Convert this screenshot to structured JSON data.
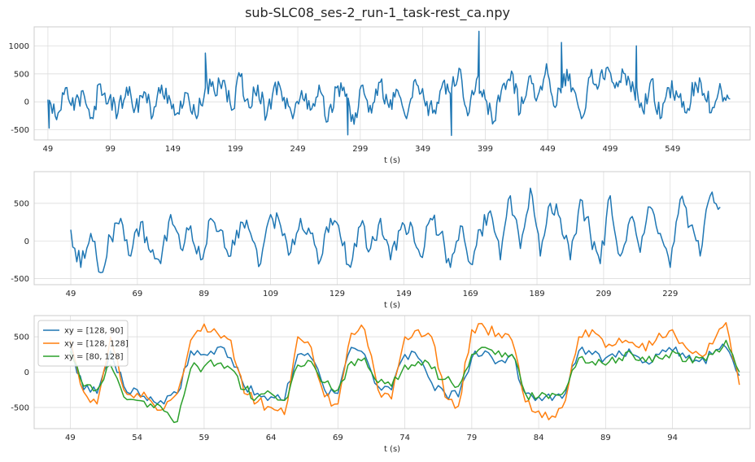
{
  "figure": {
    "title": "sub-SLC08_ses-2_run-1_task-rest_ca.npy",
    "background": "#ffffff",
    "axes_face": "#ffffff",
    "grid_color": "#dddddd",
    "spine_color": "#cccccc"
  },
  "chart_data": [
    {
      "type": "line",
      "xlabel": "t (s)",
      "ylabel": "",
      "xlim": [
        38,
        611
      ],
      "ylim": [
        -680,
        1340
      ],
      "xticks": [
        49,
        99,
        149,
        199,
        249,
        299,
        349,
        399,
        449,
        499,
        549
      ],
      "yticks": [
        -500,
        0,
        500,
        1000
      ],
      "grid": true,
      "series": [
        {
          "color": "#1f77b4",
          "x": [
            49,
            56,
            63,
            70,
            77,
            84,
            91,
            98,
            105,
            112,
            119,
            126,
            133,
            140,
            147,
            154,
            161,
            168,
            175,
            182,
            189,
            196,
            203,
            210,
            217,
            224,
            231,
            238,
            245,
            252,
            259,
            266,
            273,
            280,
            287,
            294,
            301,
            308,
            315,
            322,
            329,
            336,
            343,
            350,
            357,
            364,
            371,
            378,
            385,
            392,
            399,
            406,
            413,
            420,
            427,
            434,
            441,
            448,
            455,
            462,
            469,
            476,
            483,
            490,
            497,
            504,
            511,
            518,
            525,
            532,
            539,
            546,
            553,
            560,
            567,
            574,
            581,
            588,
            595
          ],
          "values": [
            40,
            -320,
            250,
            -150,
            200,
            -280,
            320,
            50,
            -200,
            260,
            -100,
            180,
            -250,
            300,
            20,
            -220,
            150,
            -300,
            250,
            200,
            380,
            -150,
            450,
            -100,
            300,
            -250,
            350,
            80,
            -300,
            200,
            -150,
            300,
            -350,
            250,
            100,
            -400,
            300,
            -200,
            350,
            -100,
            200,
            -300,
            400,
            50,
            -200,
            250,
            150,
            600,
            -250,
            400,
            50,
            -350,
            300,
            550,
            -200,
            450,
            100,
            680,
            -100,
            500,
            250,
            -300,
            450,
            300,
            620,
            350,
            500,
            200,
            -150,
            400,
            -300,
            250,
            100,
            -200,
            350,
            150,
            -100,
            200,
            50
          ],
          "peaks": [
            {
              "x": 175,
              "y": 870
            },
            {
              "x": 394,
              "y": 1260
            },
            {
              "x": 460,
              "y": 1060
            },
            {
              "x": 520,
              "y": 1000
            },
            {
              "x": 289,
              "y": -590
            },
            {
              "x": 372,
              "y": -600
            },
            {
              "x": 50,
              "y": -470
            }
          ]
        }
      ]
    },
    {
      "type": "line",
      "xlabel": "t (s)",
      "ylabel": "",
      "xlim": [
        38,
        253
      ],
      "ylim": [
        -580,
        920
      ],
      "xticks": [
        49,
        69,
        89,
        109,
        129,
        149,
        169,
        189,
        209,
        229
      ],
      "yticks": [
        -500,
        0,
        500
      ],
      "grid": true,
      "series": [
        {
          "color": "#1f77b4",
          "x": [
            49,
            52,
            55,
            58,
            61,
            64,
            67,
            70,
            73,
            76,
            79,
            82,
            85,
            88,
            91,
            94,
            97,
            100,
            103,
            106,
            109,
            112,
            115,
            118,
            121,
            124,
            127,
            130,
            133,
            136,
            139,
            142,
            145,
            148,
            151,
            154,
            157,
            160,
            163,
            166,
            169,
            172,
            175,
            178,
            181,
            184,
            187,
            190,
            193,
            196,
            199,
            202,
            205,
            208,
            211,
            214,
            217,
            220,
            223,
            226,
            229,
            232,
            235,
            238,
            241,
            244
          ],
          "values": [
            150,
            -350,
            100,
            -420,
            50,
            300,
            -200,
            250,
            -150,
            -300,
            350,
            -100,
            200,
            -250,
            300,
            150,
            -200,
            250,
            100,
            -300,
            350,
            200,
            -150,
            300,
            100,
            -250,
            300,
            50,
            -350,
            200,
            -100,
            300,
            -250,
            150,
            250,
            -200,
            300,
            100,
            -350,
            200,
            -300,
            150,
            400,
            -250,
            600,
            -100,
            700,
            -200,
            500,
            300,
            -250,
            550,
            100,
            -300,
            600,
            -200,
            300,
            -150,
            450,
            100,
            -350,
            550,
            200,
            -200,
            600,
            450
          ]
        }
      ]
    },
    {
      "type": "line",
      "xlabel": "t (s)",
      "ylabel": "",
      "xlim": [
        46.3,
        99.8
      ],
      "ylim": [
        -800,
        800
      ],
      "xticks": [
        49,
        54,
        59,
        64,
        69,
        74,
        79,
        84,
        89,
        94
      ],
      "yticks": [
        -500,
        0,
        500
      ],
      "grid": true,
      "legend": "top-left",
      "series": [
        {
          "name": "xy = [128, 90]",
          "color": "#1f77b4",
          "x": [
            49,
            50,
            51,
            52,
            53,
            54,
            55,
            56,
            57,
            58,
            59,
            60,
            61,
            62,
            63,
            64,
            65,
            66,
            67,
            68,
            69,
            70,
            71,
            72,
            73,
            74,
            75,
            76,
            77,
            78,
            79,
            80,
            81,
            82,
            83,
            84,
            85,
            86,
            87,
            88,
            89,
            90,
            91,
            92,
            93,
            94,
            95,
            96,
            97,
            98,
            99
          ],
          "values": [
            380,
            -250,
            -300,
            300,
            -200,
            -250,
            -350,
            -450,
            -300,
            300,
            250,
            350,
            200,
            -200,
            -300,
            -350,
            -400,
            250,
            200,
            -250,
            -300,
            350,
            250,
            -200,
            -250,
            250,
            200,
            -150,
            -300,
            -350,
            200,
            300,
            150,
            250,
            -300,
            -350,
            -400,
            -300,
            300,
            250,
            200,
            300,
            250,
            150,
            250,
            300,
            200,
            150,
            250,
            350,
            -50
          ]
        },
        {
          "name": "xy = [128, 128]",
          "color": "#ff7f0e",
          "x": [
            49,
            50,
            51,
            52,
            53,
            54,
            55,
            56,
            57,
            58,
            59,
            60,
            61,
            62,
            63,
            64,
            65,
            66,
            67,
            68,
            69,
            70,
            71,
            72,
            73,
            74,
            75,
            76,
            77,
            78,
            79,
            80,
            81,
            82,
            83,
            84,
            85,
            86,
            87,
            88,
            89,
            90,
            91,
            92,
            93,
            94,
            95,
            96,
            97,
            98,
            99
          ],
          "values": [
            450,
            -280,
            -450,
            500,
            -250,
            -300,
            -400,
            -520,
            -300,
            450,
            680,
            550,
            450,
            -300,
            -420,
            -500,
            -600,
            500,
            350,
            -350,
            -450,
            550,
            600,
            -250,
            -380,
            500,
            600,
            500,
            -350,
            -480,
            600,
            620,
            550,
            450,
            -420,
            -550,
            -620,
            -400,
            500,
            600,
            350,
            480,
            420,
            300,
            550,
            600,
            350,
            250,
            400,
            700,
            -180
          ]
        },
        {
          "name": "xy = [80, 128]",
          "color": "#2ca02c",
          "x": [
            49,
            50,
            51,
            52,
            53,
            54,
            55,
            56,
            57,
            58,
            59,
            60,
            61,
            62,
            63,
            64,
            65,
            66,
            67,
            68,
            69,
            70,
            71,
            72,
            73,
            74,
            75,
            76,
            77,
            78,
            79,
            80,
            81,
            82,
            83,
            84,
            85,
            86,
            87,
            88,
            89,
            90,
            91,
            92,
            93,
            94,
            95,
            96,
            97,
            98,
            99
          ],
          "values": [
            300,
            -200,
            -250,
            100,
            -350,
            -400,
            -450,
            -550,
            -700,
            50,
            80,
            120,
            50,
            -250,
            -350,
            -300,
            -400,
            100,
            150,
            -150,
            -250,
            150,
            200,
            -150,
            -200,
            100,
            150,
            50,
            -100,
            -200,
            250,
            350,
            300,
            250,
            -300,
            -350,
            -300,
            -250,
            200,
            150,
            100,
            200,
            250,
            150,
            200,
            300,
            150,
            200,
            250,
            450,
            0
          ]
        }
      ]
    }
  ]
}
